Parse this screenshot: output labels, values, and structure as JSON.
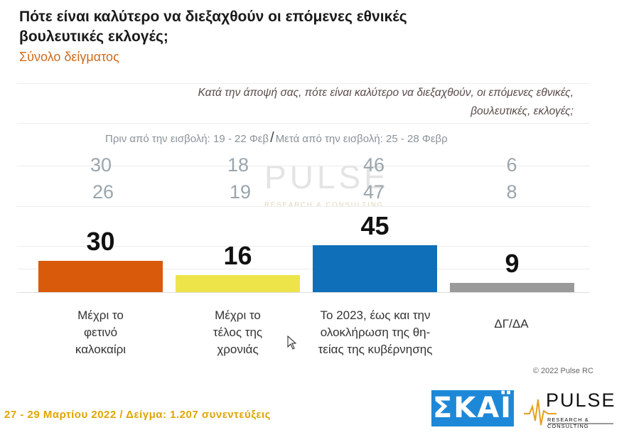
{
  "header": {
    "title": "Πότε είναι καλύτερο να διεξαχθούν οι επόμενες εθνικές βουλευτικές εκλογές;",
    "subtitle": "Σύνολο δείγματος"
  },
  "question": {
    "line1": "Κατά την άποψή σας, πότε είναι καλύτερο να διεξαχθούν, οι επόμενες εθνικές,",
    "line2": "βουλευτικές, εκλογές;"
  },
  "comparison": {
    "before_label": "Πριν από την εισβολή: 19 - 22 Φεβ",
    "separator": "/",
    "after_label": "Μετά από την εισβολή: 25 - 28 Φεβρ",
    "before": [
      "30",
      "18",
      "46",
      "6"
    ],
    "after": [
      "26",
      "19",
      "47",
      "8"
    ]
  },
  "chart_data": {
    "type": "bar",
    "categories": [
      [
        "Μέχρι το",
        "φετινό",
        "καλοκαίρι"
      ],
      [
        "Μέχρι το",
        "τέλος της",
        "χρονιάς"
      ],
      [
        "Το 2023, έως και την",
        "ολοκλήρωση της θη-",
        "τείας της κυβέρνησης"
      ],
      [
        "ΔΓ/ΔΑ"
      ]
    ],
    "values": [
      30,
      16,
      45,
      9
    ],
    "colors": [
      "#d95a0a",
      "#ede44a",
      "#0f6fb8",
      "#9a9a9a"
    ],
    "ylim": [
      0,
      50
    ],
    "grid": true
  },
  "watermark": {
    "word": "PULSE",
    "sub": "RESEARCH & CONSULTING"
  },
  "footer": {
    "copyright": "© 2022 Pulse RC",
    "info": "27 - 29  Μαρτίου  2022  /  Δείγμα:  1.207 συνεντεύξεις",
    "color": "#e0a400"
  },
  "logos": {
    "skai": "ΣΚΑΪ",
    "skai_color": "#1e88d8",
    "pulse_word": "PULSE",
    "pulse_sub": "RESEARCH & CONSULTING"
  }
}
